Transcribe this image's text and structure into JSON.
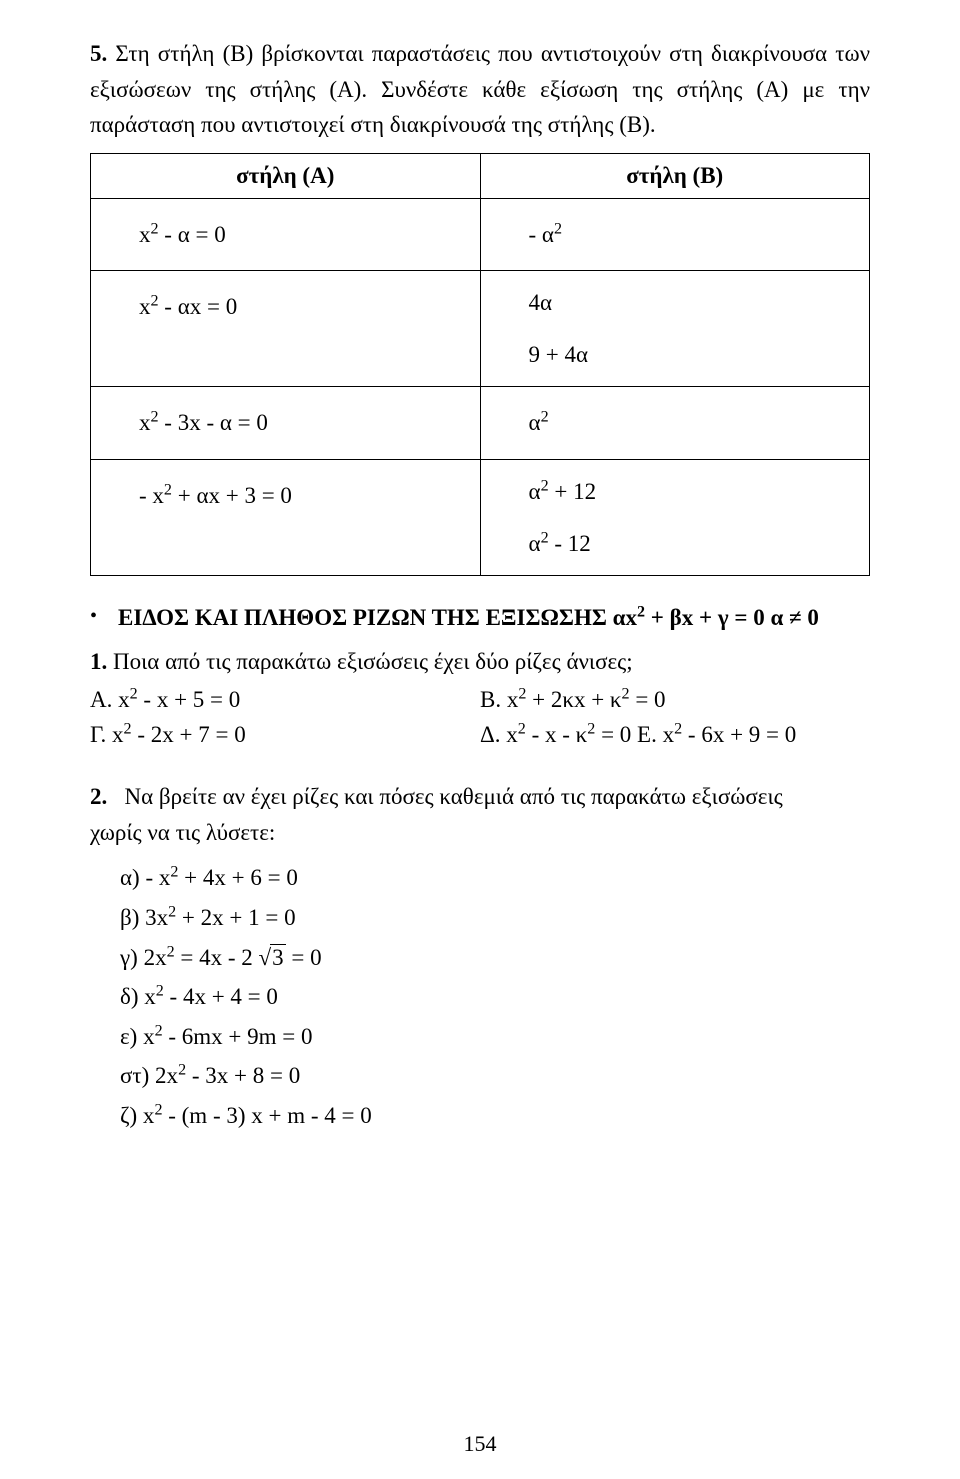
{
  "intro": {
    "number": "5.",
    "line1": "Στη στήλη (Β) βρίσκονται παραστάσεις που αντιστοιχούν στη διακρίνουσα",
    "line2": "των εξισώσεων της στήλης (Α). Συνδέστε κάθε εξίσωση της στήλης (Α) με",
    "line3": "την παράσταση που αντιστοιχεί στη διακρίνουσά της στήλης (Β)."
  },
  "table": {
    "headerA": "στήλη (Α)",
    "headerB": "στήλη (Β)",
    "rows": [
      {
        "a": "x² - α = 0",
        "b": [
          "- α²"
        ]
      },
      {
        "a": "x² - αx = 0",
        "b": [
          "4α",
          "9 + 4α"
        ]
      },
      {
        "a": "x² - 3x - α = 0",
        "b": [
          "α²"
        ]
      },
      {
        "a": "- x² + αx + 3 = 0",
        "b": [
          "α² + 12",
          "α² - 12"
        ]
      }
    ]
  },
  "section": {
    "heading": "ΕΙΔΟΣ ΚΑΙ ΠΛΗΘΟΣ ΡΙΖΩΝ ΤΗΣ ΕΞΙΣΩΣΗΣ αx² + βx + γ = 0  α ≠ 0"
  },
  "q1": {
    "number": "1.",
    "text": "Ποια από τις παρακάτω εξισώσεις έχει δύο ρίζες άνισες;",
    "choices": {
      "A": "Α. x² - x + 5 = 0",
      "B": "Β. x² + 2κx + κ² = 0",
      "C": "Γ. x² - 2x + 7 = 0",
      "D": "Δ. x² - x - κ² = 0",
      "E": "Ε. x² - 6x + 9 = 0"
    }
  },
  "q2": {
    "number": "2.",
    "text_l1": "Να βρείτε αν έχει ρίζες και πόσες καθεμιά από τις παρακάτω εξισώσεις",
    "text_l2": "χωρίς να τις λύσετε:",
    "items": {
      "a": "α) - x² + 4x + 6 = 0",
      "b": "β) 3x² + 2x + 1 = 0",
      "c_pre": "γ) 2x² = 4x - 2",
      "c_suf": " = 0",
      "c_rad": "3",
      "d": "δ) x² - 4x + 4 = 0",
      "e": "ε) x² - 6mx + 9m = 0",
      "st": "στ) 2x² - 3x + 8 = 0",
      "z": "ζ) x² - (m - 3) x + m - 4 = 0"
    }
  },
  "pagenum": "154"
}
